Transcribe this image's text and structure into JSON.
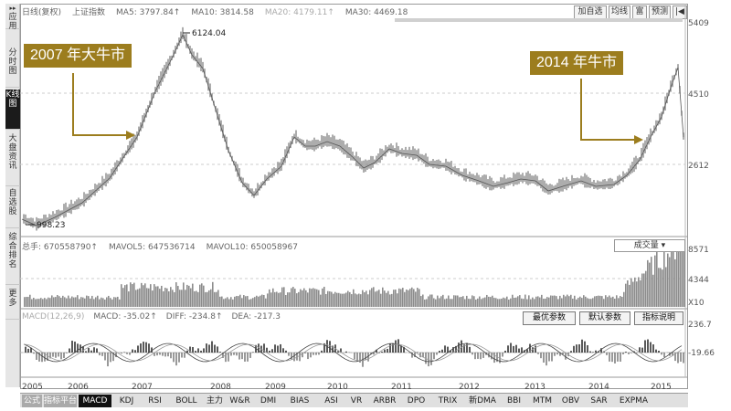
{
  "header": {
    "period": "日线(复权)",
    "index_name": "上证指数",
    "ma5": "MA5: 3797.84↑",
    "ma10": "MA10: 3814.58",
    "ma20": "MA20: 4179.11↑",
    "ma30": "MA30: 4469.18"
  },
  "toolbar": {
    "add_watch": "加自选",
    "avg_line": "均线",
    "restore": "富",
    "forecast": "预测",
    "back": "|◀"
  },
  "sidebar": {
    "items": [
      {
        "label": "应用"
      },
      {
        "label": "分时图"
      },
      {
        "label": "K线图"
      },
      {
        "label": "大盘资讯"
      },
      {
        "label": "自选股"
      },
      {
        "label": "综合排名"
      },
      {
        "label": "更多"
      }
    ]
  },
  "annotations": {
    "bull_2007": "2007 年大牛市",
    "bull_2014": "2014 年牛市"
  },
  "price_panel": {
    "peak_label": "6124.04",
    "low_label": "998.23",
    "axis": [
      "5409",
      "4510",
      "2612"
    ]
  },
  "volume_panel": {
    "vol": "总手: 670558790↑",
    "mavol5": "MAVOL5: 647536714",
    "mavol10": "MAVOL10: 650058967",
    "indicator_select": "成交量",
    "axis": [
      "8571",
      "4344",
      "X10"
    ]
  },
  "macd_panel": {
    "name": "MACD(12,26,9)",
    "macd": "MACD: -35.02↑",
    "diff": "DIFF: -234.8↑",
    "dea": "DEA: -217.3",
    "btn_optimal": "最优参数",
    "btn_default": "默认参数",
    "btn_help": "指标说明",
    "axis": [
      "236.7",
      "-19.66"
    ]
  },
  "x_axis": [
    "2005",
    "2006",
    "2007",
    "2008",
    "2009",
    "2010",
    "2011",
    "2012",
    "2013",
    "2014",
    "2015"
  ],
  "bottom_tabs": [
    "公式",
    "指标平台",
    "MACD",
    "KDJ",
    "RSI",
    "BOLL",
    "主力",
    "W&R",
    "DMI",
    "BIAS",
    "ASI",
    "VR",
    "ARBR",
    "DPO",
    "TRIX",
    "新DMA",
    "BBI",
    "MTM",
    "OBV",
    "SAR",
    "EXPMA"
  ],
  "active_tab": "MACD",
  "colors": {
    "annotation": "#9c7d1e",
    "candle": "#888888",
    "text": "#666666"
  }
}
